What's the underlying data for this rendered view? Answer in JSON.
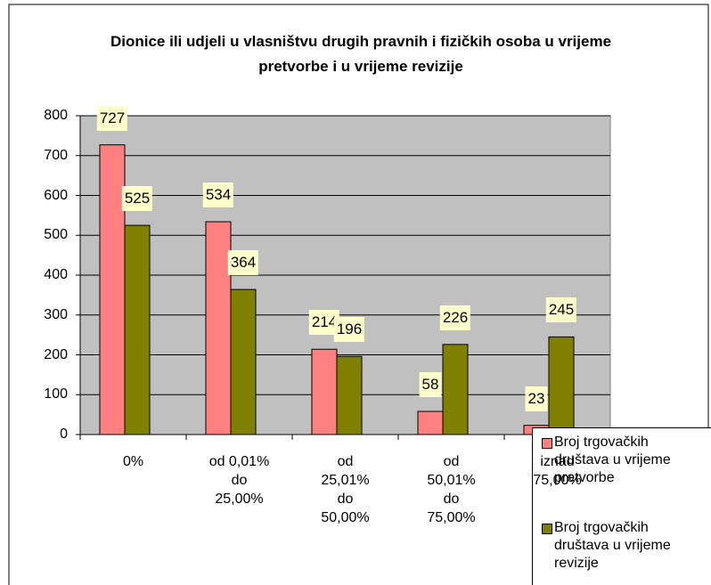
{
  "chart_data": {
    "type": "bar",
    "title": "Dionice ili udjeli u vlasništvu drugih pravnih i fizičkih osoba u vrijeme pretvorbe i u vrijeme revizije",
    "categories": [
      "0%",
      "od 0,01% do 25,00%",
      "od 25,01% do 50,00%",
      "od 50,01% do 75,00%",
      "iznad 75,00%"
    ],
    "series": [
      {
        "name": "Broj trgovačkih društava u vrijeme pretvorbe",
        "color": "#ff8080",
        "values": [
          727,
          534,
          214,
          58,
          23
        ]
      },
      {
        "name": "Broj trgovačkih društava u vrijeme revizije",
        "color": "#808000",
        "values": [
          525,
          364,
          196,
          226,
          245
        ]
      }
    ],
    "ylim": [
      0,
      800
    ],
    "yticks": [
      0,
      100,
      200,
      300,
      400,
      500,
      600,
      700,
      800
    ],
    "grid": true,
    "legend": "right"
  }
}
